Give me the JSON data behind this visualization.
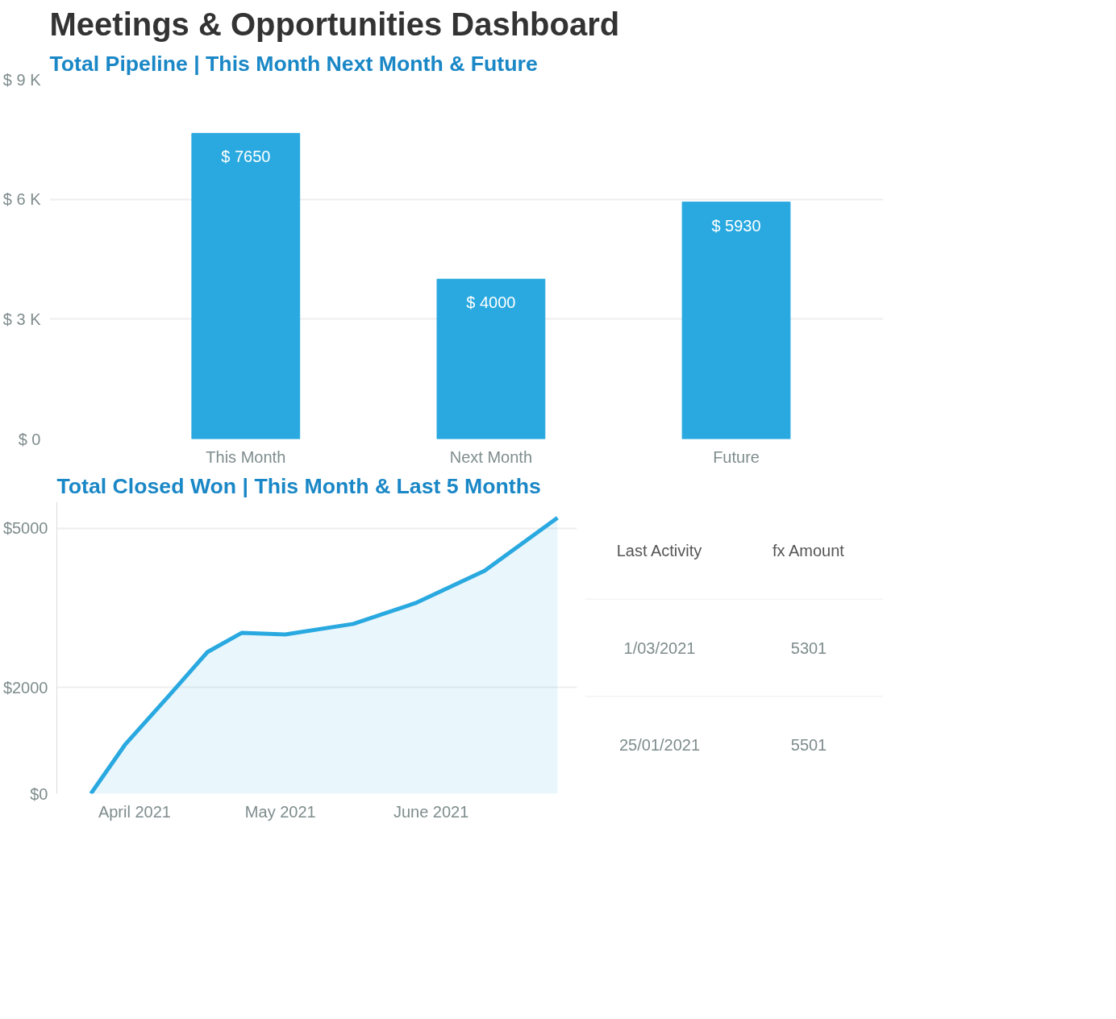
{
  "chart_data": [
    {
      "type": "bar",
      "title": "Meetings & Opportunities Dashboard",
      "subtitle": "Total Pipeline |  This Month Next Month & Future",
      "categories": [
        "This Month",
        "Next Month",
        "Future"
      ],
      "series": [
        {
          "color": "#29a9e0",
          "values": [
            7650,
            4000,
            5930
          ],
          "value_labels": [
            "$ 7650",
            "$ 4000",
            "$ 5930"
          ]
        }
      ],
      "ylim": [
        0,
        9000
      ],
      "yticks": [
        {
          "value": 0,
          "label": "$ 0"
        },
        {
          "value": 3000,
          "label": "$ 3 K"
        },
        {
          "value": 6000,
          "label": "$ 6 K"
        },
        {
          "value": 9000,
          "label": "$ 9 K"
        }
      ],
      "grid": "y"
    },
    {
      "type": "area",
      "title": "Total Closed Won | This Month & Last 5 Months",
      "x": [
        "2021-03-23",
        "2021-03-30",
        "2021-04-08",
        "2021-04-16",
        "2021-04-23",
        "2021-05-02",
        "2021-05-16",
        "2021-05-29",
        "2021-06-12",
        "2021-06-27"
      ],
      "series": [
        {
          "color": "#29a9e0",
          "values": [
            0,
            920,
            1840,
            2670,
            3030,
            3000,
            3200,
            3600,
            4200,
            5200
          ]
        }
      ],
      "xlim": [
        "2021-03-16",
        "2021-07-01"
      ],
      "xticks": [
        {
          "value": "2021-04-01",
          "label": "April 2021"
        },
        {
          "value": "2021-05-01",
          "label": "May 2021"
        },
        {
          "value": "2021-06-01",
          "label": "June 2021"
        }
      ],
      "ylim": [
        0,
        5500
      ],
      "yticks": [
        {
          "value": 0,
          "label": "$0"
        },
        {
          "value": 2000,
          "label": "$2000"
        },
        {
          "value": 5000,
          "label": "$5000"
        }
      ],
      "grid": "y",
      "marker": "none"
    },
    {
      "type": "other",
      "annotations": [
        "Last Activity",
        "fx Amount",
        "1/03/2021",
        "5301",
        "25/01/2021",
        "5501"
      ]
    }
  ]
}
